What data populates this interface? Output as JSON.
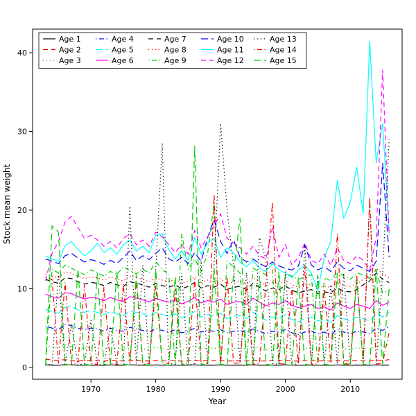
{
  "figure": {
    "background": "#ffffff"
  },
  "chart_data": {
    "type": "line",
    "title": "",
    "xlabel": "Year",
    "ylabel": "Stock mean weight",
    "x_ticks": [
      1970,
      1980,
      1990,
      2000,
      2010
    ],
    "y_ticks": [
      0,
      10,
      20,
      30,
      40
    ],
    "xlim": [
      1961,
      2018
    ],
    "ylim": [
      -1.5,
      43
    ],
    "grid": false,
    "legend_position": "top-inside",
    "legend_columns": 5,
    "legend_rows": 3,
    "x": [
      1963,
      1964,
      1965,
      1966,
      1967,
      1968,
      1969,
      1970,
      1971,
      1972,
      1973,
      1974,
      1975,
      1976,
      1977,
      1978,
      1979,
      1980,
      1981,
      1982,
      1983,
      1984,
      1985,
      1986,
      1987,
      1988,
      1989,
      1990,
      1991,
      1992,
      1993,
      1994,
      1995,
      1996,
      1997,
      1998,
      1999,
      2000,
      2001,
      2002,
      2003,
      2004,
      2005,
      2006,
      2007,
      2008,
      2009,
      2010,
      2011,
      2012,
      2013,
      2014,
      2015,
      2016
    ],
    "series": [
      {
        "name": "Age 1",
        "color": "#000000",
        "linestyle": "solid",
        "values": [
          0.32,
          0.3,
          0.28,
          0.35,
          0.33,
          0.3,
          0.29,
          0.31,
          0.3,
          0.28,
          0.32,
          0.3,
          0.29,
          0.33,
          0.31,
          0.3,
          0.28,
          0.32,
          0.3,
          0.29,
          0.31,
          0.28,
          0.3,
          0.33,
          0.29,
          0.31,
          0.3,
          0.32,
          0.28,
          0.3,
          0.31,
          0.29,
          0.33,
          0.3,
          0.28,
          0.31,
          0.3,
          0.32,
          0.29,
          0.28,
          0.3,
          0.31,
          0.29,
          0.3,
          0.28,
          0.32,
          0.3,
          0.29,
          0.31,
          0.3,
          0.28,
          0.33,
          0.3,
          0.31
        ]
      },
      {
        "name": "Age 2",
        "color": "#FF0000",
        "linestyle": "dashed",
        "values": [
          1.05,
          0.95,
          0.9,
          1.0,
          0.85,
          0.8,
          0.88,
          0.92,
          0.85,
          0.8,
          0.9,
          0.85,
          0.82,
          0.95,
          0.88,
          0.85,
          0.8,
          0.9,
          0.85,
          0.82,
          0.88,
          0.8,
          0.85,
          0.95,
          0.82,
          0.88,
          0.85,
          0.9,
          0.8,
          0.85,
          0.88,
          0.82,
          0.95,
          0.85,
          0.8,
          0.88,
          0.85,
          0.9,
          0.82,
          0.8,
          0.85,
          0.88,
          0.82,
          0.85,
          0.8,
          0.9,
          0.85,
          0.82,
          0.88,
          0.85,
          0.8,
          0.95,
          0.85,
          1.0
        ]
      },
      {
        "name": "Age 3",
        "color": "#00CD00",
        "linestyle": "dotted",
        "values": [
          2.8,
          2.6,
          2.5,
          2.9,
          2.7,
          2.5,
          2.4,
          2.6,
          2.5,
          2.3,
          2.6,
          2.4,
          2.3,
          2.7,
          2.5,
          2.4,
          2.2,
          2.6,
          2.4,
          2.3,
          2.5,
          2.2,
          2.4,
          2.8,
          2.3,
          2.5,
          2.4,
          2.6,
          2.2,
          2.4,
          2.5,
          2.3,
          2.7,
          2.4,
          2.2,
          2.5,
          2.4,
          2.6,
          2.3,
          2.2,
          2.4,
          2.5,
          2.3,
          2.4,
          2.2,
          2.6,
          2.4,
          2.3,
          2.5,
          2.4,
          2.3,
          2.8,
          2.6,
          3.0
        ]
      },
      {
        "name": "Age 4",
        "color": "#0000FF",
        "linestyle": "dotdash",
        "values": [
          5.2,
          5.0,
          4.8,
          5.5,
          5.3,
          5.0,
          4.8,
          5.0,
          4.9,
          4.6,
          5.0,
          4.7,
          4.6,
          5.1,
          4.9,
          4.7,
          4.5,
          4.9,
          4.7,
          4.5,
          4.8,
          4.4,
          4.6,
          5.0,
          4.5,
          4.7,
          4.6,
          4.8,
          4.4,
          4.6,
          4.7,
          4.4,
          4.9,
          4.6,
          4.3,
          4.6,
          4.5,
          4.8,
          4.4,
          4.2,
          4.5,
          4.6,
          4.3,
          4.5,
          4.2,
          4.8,
          4.5,
          4.3,
          4.6,
          4.5,
          4.3,
          5.0,
          4.7,
          5.2
        ]
      },
      {
        "name": "Age 5",
        "color": "#00FFFF",
        "linestyle": "longdash",
        "values": [
          7.4,
          7.1,
          6.9,
          7.6,
          7.8,
          7.3,
          7.0,
          7.2,
          7.0,
          6.7,
          7.1,
          6.8,
          6.6,
          7.2,
          7.0,
          6.8,
          6.5,
          7.0,
          6.7,
          6.5,
          6.8,
          6.3,
          6.6,
          7.1,
          6.4,
          6.7,
          6.5,
          6.9,
          6.2,
          6.5,
          6.6,
          6.2,
          7.0,
          6.5,
          6.0,
          6.4,
          6.2,
          6.7,
          6.1,
          5.8,
          6.2,
          6.4,
          5.9,
          6.1,
          5.7,
          6.6,
          6.2,
          5.9,
          6.4,
          6.2,
          5.9,
          6.9,
          6.4,
          7.0
        ]
      },
      {
        "name": "Age 6",
        "color": "#FF00FF",
        "linestyle": "solid",
        "values": [
          9.3,
          9.0,
          8.8,
          9.5,
          9.4,
          9.0,
          8.7,
          8.9,
          8.8,
          8.5,
          8.9,
          8.6,
          8.4,
          9.0,
          8.8,
          8.6,
          8.3,
          8.8,
          8.5,
          8.3,
          8.6,
          8.1,
          8.4,
          8.9,
          8.2,
          8.5,
          8.3,
          8.7,
          8.0,
          8.3,
          8.4,
          8.0,
          8.8,
          8.3,
          7.8,
          8.2,
          8.0,
          8.5,
          7.9,
          7.6,
          7.8,
          8.0,
          7.5,
          7.7,
          7.3,
          8.2,
          7.8,
          7.5,
          8.0,
          7.8,
          7.5,
          8.5,
          7.9,
          8.3
        ]
      },
      {
        "name": "Age 7",
        "color": "#000000",
        "linestyle": "dashed",
        "values": [
          11.2,
          10.9,
          10.7,
          11.4,
          11.3,
          10.9,
          10.6,
          10.8,
          10.7,
          10.4,
          10.8,
          10.5,
          10.3,
          10.9,
          10.7,
          10.5,
          10.2,
          10.7,
          10.4,
          10.2,
          10.5,
          10.0,
          10.3,
          10.8,
          10.1,
          10.4,
          10.2,
          10.6,
          9.9,
          10.2,
          10.3,
          9.9,
          10.7,
          10.2,
          9.7,
          10.1,
          9.9,
          10.4,
          9.8,
          9.5,
          9.7,
          9.9,
          9.4,
          9.6,
          9.5,
          10.1,
          9.7,
          9.6,
          9.9,
          10.5,
          11.0,
          12.0,
          11.2,
          10.8
        ]
      },
      {
        "name": "Age 8",
        "color": "#FF0000",
        "linestyle": "dotted",
        "values": [
          11.9,
          11.6,
          11.4,
          12.1,
          12.0,
          11.6,
          11.3,
          11.5,
          11.4,
          11.1,
          11.5,
          11.2,
          11.0,
          11.6,
          11.4,
          11.2,
          10.9,
          11.4,
          11.1,
          10.9,
          11.2,
          10.7,
          11.0,
          11.5,
          10.8,
          11.1,
          10.9,
          11.3,
          10.6,
          10.9,
          11.0,
          10.6,
          11.4,
          10.9,
          10.4,
          10.8,
          10.6,
          11.1,
          10.5,
          10.2,
          10.4,
          10.6,
          10.1,
          10.3,
          10.2,
          10.8,
          10.4,
          10.3,
          10.6,
          11.2,
          11.7,
          12.6,
          11.9,
          11.4
        ]
      },
      {
        "name": "Age 9",
        "color": "#00CD00",
        "linestyle": "dotdash",
        "values": [
          0.2,
          12.5,
          12.0,
          13.0,
          12.6,
          12.2,
          11.8,
          12.4,
          12.0,
          11.6,
          12.2,
          11.8,
          12.8,
          12.3,
          11.9,
          12.5,
          12.0,
          13.5,
          12.4,
          11.9,
          0.3,
          17.0,
          12.5,
          13.8,
          12.2,
          14.5,
          21.0,
          0.2,
          13.5,
          12.8,
          12.0,
          0.3,
          12.6,
          12.2,
          11.8,
          12.4,
          0.2,
          12.0,
          11.6,
          11.2,
          11.5,
          11.8,
          0.3,
          11.4,
          11.0,
          12.2,
          11.6,
          11.2,
          12.0,
          11.8,
          11.3,
          12.4,
          9.5,
          9.8
        ]
      },
      {
        "name": "Age 10",
        "color": "#0000FF",
        "linestyle": "longdash",
        "values": [
          13.8,
          13.5,
          13.2,
          14.2,
          14.5,
          13.9,
          13.4,
          13.7,
          13.5,
          13.1,
          13.6,
          13.2,
          14.0,
          14.8,
          13.6,
          14.2,
          13.7,
          14.5,
          15.2,
          13.8,
          13.4,
          14.0,
          13.2,
          14.6,
          13.5,
          16.5,
          18.8,
          16.0,
          14.5,
          16.2,
          14.0,
          13.4,
          13.8,
          13.2,
          12.8,
          13.4,
          12.9,
          12.6,
          12.4,
          12.9,
          15.6,
          13.0,
          12.4,
          12.8,
          12.2,
          13.4,
          12.6,
          12.3,
          13.0,
          12.6,
          12.2,
          13.5,
          26.0,
          14.0
        ]
      },
      {
        "name": "Age 11",
        "color": "#00FFFF",
        "linestyle": "solid",
        "values": [
          14.2,
          13.8,
          13.5,
          15.5,
          16.0,
          15.0,
          14.2,
          14.8,
          15.8,
          14.6,
          15.2,
          14.4,
          15.6,
          16.2,
          14.8,
          15.4,
          14.6,
          16.8,
          17.0,
          15.0,
          13.8,
          14.8,
          13.6,
          16.5,
          14.4,
          15.8,
          16.4,
          14.0,
          15.2,
          14.6,
          13.4,
          12.8,
          13.6,
          12.6,
          12.2,
          13.2,
          12.4,
          12.0,
          11.4,
          12.4,
          13.0,
          12.0,
          9.8,
          14.0,
          16.0,
          23.8,
          19.0,
          21.0,
          25.5,
          19.5,
          41.5,
          26.0,
          31.0,
          17.0
        ]
      },
      {
        "name": "Age 12",
        "color": "#FF00FF",
        "linestyle": "dashed",
        "values": [
          11.0,
          14.5,
          16.0,
          18.5,
          19.2,
          17.8,
          16.4,
          16.8,
          16.2,
          15.4,
          16.0,
          15.2,
          16.4,
          17.0,
          15.6,
          16.2,
          15.4,
          17.2,
          16.6,
          15.6,
          14.6,
          15.6,
          14.4,
          17.4,
          15.2,
          16.6,
          18.0,
          19.5,
          16.4,
          15.8,
          15.2,
          14.4,
          15.4,
          14.2,
          13.8,
          17.8,
          14.0,
          15.6,
          13.0,
          14.0,
          15.8,
          13.6,
          13.2,
          14.4,
          13.0,
          15.2,
          13.6,
          13.2,
          14.2,
          13.6,
          12.4,
          16.5,
          37.8,
          16.8
        ]
      },
      {
        "name": "Age 13",
        "color": "#000000",
        "linestyle": "dotted",
        "values": [
          0.5,
          0.3,
          12.0,
          0.4,
          5.5,
          0.3,
          0.5,
          6.0,
          0.4,
          0.3,
          5.2,
          0.4,
          0.3,
          20.5,
          0.5,
          13.0,
          0.4,
          12.5,
          28.5,
          0.5,
          0.4,
          12.0,
          0.3,
          0.5,
          13.5,
          0.4,
          12.8,
          31.0,
          20.0,
          13.0,
          0.5,
          12.0,
          0.4,
          16.5,
          13.8,
          0.5,
          0.4,
          12.2,
          0.3,
          0.5,
          15.5,
          0.4,
          11.8,
          0.3,
          10.5,
          0.5,
          12.0,
          0.4,
          11.5,
          0.3,
          21.5,
          0.5,
          12.0,
          29.0
        ]
      },
      {
        "name": "Age 14",
        "color": "#FF0000",
        "linestyle": "dotdash",
        "values": [
          11.5,
          11.2,
          0.5,
          10.8,
          0.4,
          0.6,
          10.5,
          0.5,
          0.4,
          10.2,
          0.5,
          0.4,
          10.6,
          0.5,
          11.0,
          0.4,
          0.5,
          10.4,
          0.6,
          0.5,
          10.0,
          0.4,
          0.5,
          11.2,
          0.6,
          0.5,
          22.0,
          0.4,
          11.5,
          0.5,
          0.6,
          10.5,
          0.4,
          0.5,
          10.8,
          21.0,
          0.5,
          0.4,
          10.2,
          0.5,
          13.0,
          0.4,
          0.5,
          10.0,
          0.6,
          17.0,
          0.5,
          0.4,
          11.8,
          0.5,
          21.5,
          0.4,
          0.6,
          4.5
        ]
      },
      {
        "name": "Age 15",
        "color": "#00CD00",
        "linestyle": "longdash",
        "values": [
          0.3,
          18.0,
          17.2,
          0.4,
          0.3,
          12.5,
          0.4,
          0.3,
          12.0,
          0.4,
          0.3,
          12.2,
          0.4,
          0.3,
          11.8,
          0.4,
          0.3,
          12.4,
          0.4,
          0.3,
          11.5,
          0.4,
          0.3,
          28.2,
          0.4,
          0.3,
          12.6,
          0.4,
          0.3,
          12.0,
          19.0,
          0.4,
          0.3,
          11.6,
          0.4,
          0.3,
          12.2,
          0.4,
          0.3,
          11.4,
          0.4,
          0.3,
          11.8,
          0.4,
          0.3,
          12.0,
          0.4,
          0.3,
          11.2,
          0.4,
          0.3,
          12.5,
          0.4,
          10.0
        ]
      }
    ]
  }
}
